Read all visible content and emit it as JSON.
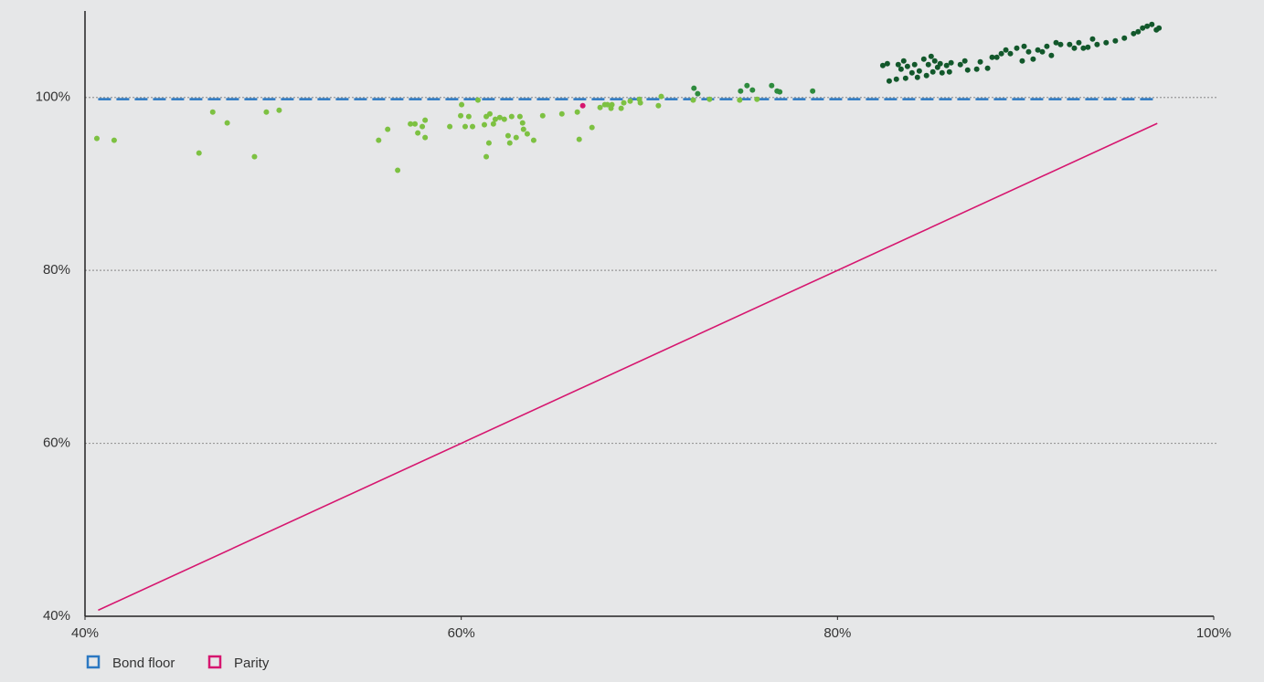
{
  "chart_data": {
    "type": "scatter",
    "xlim": [
      40,
      100
    ],
    "ylim": [
      40,
      110
    ],
    "xticks": [
      {
        "value": 40,
        "label": "40%"
      },
      {
        "value": 60,
        "label": "60%"
      },
      {
        "value": 80,
        "label": "80%"
      },
      {
        "value": 100,
        "label": "100%"
      }
    ],
    "yticks": [
      {
        "value": 40,
        "label": "40%"
      },
      {
        "value": 60,
        "label": "60%"
      },
      {
        "value": 80,
        "label": "80%"
      },
      {
        "value": 100,
        "label": "100%"
      }
    ],
    "grid": true,
    "series": [
      {
        "color": "#7dc142",
        "x": [
          40.63,
          41.55,
          46.06,
          46.79,
          47.56,
          49.01,
          49.64,
          50.32,
          55.61,
          56.09,
          56.62,
          57.3,
          57.54,
          57.69,
          57.93,
          58.08,
          58.08,
          59.39,
          59.97,
          60.02,
          60.21,
          60.4,
          60.6,
          60.89,
          61.23,
          61.33,
          61.33,
          61.47,
          61.52,
          61.71,
          61.81,
          62.05,
          62.29,
          62.49,
          62.58,
          62.68,
          62.92,
          63.12,
          63.26,
          63.31,
          63.51,
          63.85,
          64.33,
          65.35,
          66.17,
          66.27,
          66.95,
          67.38,
          67.63,
          67.77,
          67.96,
          68.01,
          68.5,
          68.64,
          68.98,
          69.47,
          69.52,
          70.48,
          70.63,
          72.33,
          73.2,
          74.8,
          75.72
        ],
        "values": [
          95.26,
          95.05,
          93.57,
          98.31,
          97.05,
          93.15,
          98.31,
          98.52,
          95.05,
          96.31,
          91.57,
          96.94,
          96.94,
          95.89,
          96.63,
          97.37,
          95.36,
          96.63,
          97.89,
          99.16,
          96.63,
          97.79,
          96.63,
          99.69,
          96.84,
          93.15,
          97.79,
          94.73,
          98.1,
          96.94,
          97.47,
          97.68,
          97.47,
          95.57,
          94.73,
          97.79,
          95.36,
          97.79,
          97.05,
          96.31,
          95.78,
          95.05,
          97.89,
          98.1,
          98.31,
          95.15,
          96.52,
          98.84,
          99.16,
          99.16,
          98.74,
          99.16,
          98.74,
          99.37,
          99.58,
          99.79,
          99.37,
          99.05,
          100.11,
          99.69,
          99.79,
          99.69,
          99.79
        ]
      },
      {
        "color": "#2e8b3e",
        "x": [
          72.37,
          72.57,
          74.85,
          75.19,
          75.48,
          76.5,
          76.79,
          76.93,
          78.68
        ],
        "values": [
          101.06,
          100.43,
          100.74,
          101.37,
          100.85,
          101.37,
          100.74,
          100.64,
          100.74
        ]
      },
      {
        "color": "#12582b",
        "x": [
          82.41,
          82.65,
          82.75,
          83.13,
          83.23,
          83.38,
          83.52,
          83.62,
          83.72,
          83.96,
          84.1,
          84.25,
          84.35,
          84.59,
          84.73,
          84.83,
          84.98,
          85.07,
          85.17,
          85.32,
          85.46,
          85.56,
          85.8,
          85.95,
          86.04,
          86.53,
          86.77,
          86.92,
          87.4,
          87.59,
          87.98,
          88.22,
          88.47,
          88.71,
          88.95,
          89.19,
          89.53,
          89.82,
          89.92,
          90.16,
          90.4,
          90.65,
          90.89,
          91.13,
          91.37,
          91.62,
          91.86,
          92.34,
          92.59,
          92.83,
          93.07,
          93.31,
          93.56,
          93.8,
          94.28,
          94.77,
          95.25,
          95.74,
          95.98,
          96.22,
          96.46,
          96.71,
          96.95,
          97.09
        ],
        "values": [
          103.69,
          103.9,
          101.9,
          102.11,
          103.8,
          103.27,
          104.22,
          102.22,
          103.59,
          102.85,
          103.8,
          102.32,
          103.06,
          104.43,
          102.53,
          103.8,
          104.75,
          102.95,
          104.22,
          103.48,
          103.9,
          102.85,
          103.69,
          102.95,
          104.01,
          103.8,
          104.22,
          103.17,
          103.27,
          104.11,
          103.38,
          104.64,
          104.64,
          105.06,
          105.49,
          105.06,
          105.7,
          104.22,
          105.91,
          105.27,
          104.43,
          105.49,
          105.27,
          105.91,
          104.85,
          106.33,
          106.12,
          106.12,
          105.7,
          106.33,
          105.7,
          105.8,
          106.75,
          106.12,
          106.33,
          106.54,
          106.86,
          107.38,
          107.6,
          108.02,
          108.23,
          108.44,
          107.81,
          108.02
        ]
      },
      {
        "color": "#d6166f",
        "x": [
          66.46
        ],
        "values": [
          99.05
        ]
      }
    ],
    "lines": [
      {
        "name": "Bond floor",
        "color": "#2b78c2",
        "dashed": true,
        "x": [
          40.7,
          97
        ],
        "values": [
          99.8,
          99.8
        ]
      },
      {
        "name": "Parity",
        "color": "#d6166f",
        "dashed": false,
        "x": [
          40.7,
          97
        ],
        "values": [
          40.7,
          97
        ]
      }
    ]
  }
}
